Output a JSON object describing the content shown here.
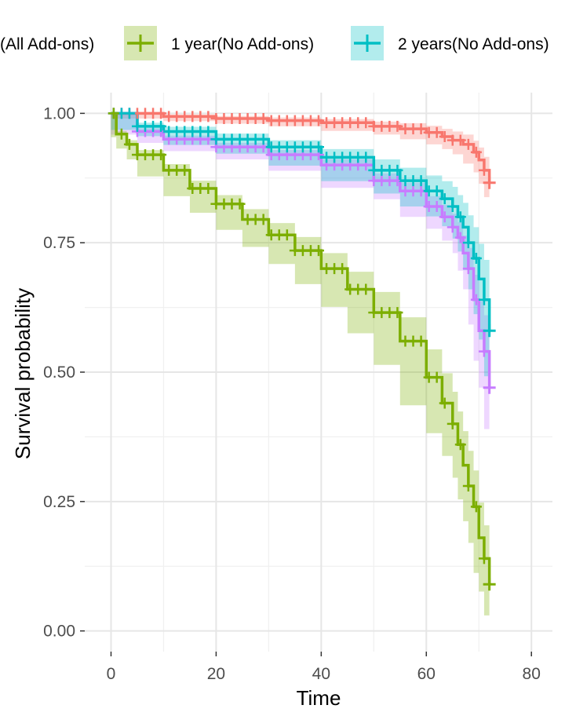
{
  "chart_data": {
    "type": "line",
    "chart_subtype": "kaplan-meier survival curve with confidence bands and censor marks",
    "xlabel": "Time",
    "ylabel": "Survival probability",
    "xlim": [
      -5,
      84
    ],
    "ylim": [
      -0.04,
      1.04
    ],
    "x_ticks": [
      0,
      20,
      40,
      60,
      80
    ],
    "x_tick_labels": [
      "0",
      "20",
      "40",
      "60",
      "80"
    ],
    "y_ticks": [
      0,
      0.25,
      0.5,
      0.75,
      1
    ],
    "y_tick_labels": [
      "0.00",
      "0.25",
      "0.50",
      "0.75",
      "1.00"
    ],
    "grid": true,
    "legend_position": "top",
    "legend_entries": [
      {
        "label": "(All Add-ons)",
        "color": "#F8766D"
      },
      {
        "label": "1 year(No Add-ons)",
        "color": "#7CAE00"
      },
      {
        "label": "2 years(No Add-ons)",
        "color": "#00BFC4"
      }
    ],
    "series": [
      {
        "name": "(All Add-ons)",
        "color": "#F8766D",
        "x": [
          0,
          10,
          20,
          30,
          40,
          50,
          55,
          60,
          63,
          65,
          67,
          69,
          70,
          71,
          72
        ],
        "y": [
          1.0,
          0.994,
          0.99,
          0.986,
          0.982,
          0.975,
          0.97,
          0.963,
          0.955,
          0.948,
          0.94,
          0.925,
          0.91,
          0.89,
          0.866
        ],
        "ci_width": [
          0,
          0.004,
          0.005,
          0.006,
          0.007,
          0.009,
          0.011,
          0.013,
          0.015,
          0.017,
          0.019,
          0.022,
          0.024,
          0.026,
          0.028
        ]
      },
      {
        "name": "",
        "color": "#C77CFF",
        "x": [
          0,
          5,
          10,
          20,
          30,
          40,
          50,
          55,
          60,
          63,
          65,
          66,
          67,
          68,
          69,
          70,
          71,
          72
        ],
        "y": [
          1.0,
          0.965,
          0.95,
          0.935,
          0.92,
          0.9,
          0.87,
          0.85,
          0.82,
          0.8,
          0.78,
          0.76,
          0.73,
          0.7,
          0.64,
          0.58,
          0.54,
          0.47
        ],
        "ci_width": [
          0,
          0.006,
          0.007,
          0.008,
          0.009,
          0.011,
          0.014,
          0.016,
          0.02,
          0.023,
          0.026,
          0.03,
          0.034,
          0.04,
          0.048,
          0.058,
          0.07,
          0.08
        ]
      },
      {
        "name": "2 years(No Add-ons)",
        "color": "#00BFC4",
        "x": [
          0,
          5,
          10,
          20,
          30,
          40,
          50,
          55,
          60,
          63,
          65,
          66,
          67,
          68,
          69,
          70,
          71,
          72
        ],
        "y": [
          1.0,
          0.975,
          0.965,
          0.95,
          0.935,
          0.915,
          0.89,
          0.87,
          0.85,
          0.835,
          0.82,
          0.8,
          0.78,
          0.75,
          0.72,
          0.68,
          0.64,
          0.58
        ],
        "ci_width": [
          0,
          0.007,
          0.009,
          0.011,
          0.013,
          0.016,
          0.021,
          0.025,
          0.03,
          0.034,
          0.038,
          0.042,
          0.047,
          0.053,
          0.06,
          0.068,
          0.077,
          0.088
        ]
      },
      {
        "name": "1 year(No Add-ons)",
        "color": "#7CAE00",
        "x": [
          0,
          1,
          3,
          5,
          10,
          15,
          20,
          25,
          30,
          35,
          40,
          45,
          50,
          55,
          60,
          63,
          65,
          66,
          67,
          68,
          69,
          70,
          71,
          72
        ],
        "y": [
          1.0,
          0.96,
          0.94,
          0.92,
          0.89,
          0.855,
          0.825,
          0.795,
          0.765,
          0.735,
          0.7,
          0.66,
          0.615,
          0.56,
          0.49,
          0.44,
          0.4,
          0.36,
          0.32,
          0.28,
          0.24,
          0.18,
          0.14,
          0.09
        ],
        "ci_width": [
          0,
          0.006,
          0.008,
          0.009,
          0.012,
          0.015,
          0.017,
          0.02,
          0.023,
          0.026,
          0.03,
          0.034,
          0.04,
          0.046,
          0.054,
          0.058,
          0.062,
          0.064,
          0.066,
          0.068,
          0.07,
          0.068,
          0.064,
          0.06
        ]
      }
    ]
  }
}
